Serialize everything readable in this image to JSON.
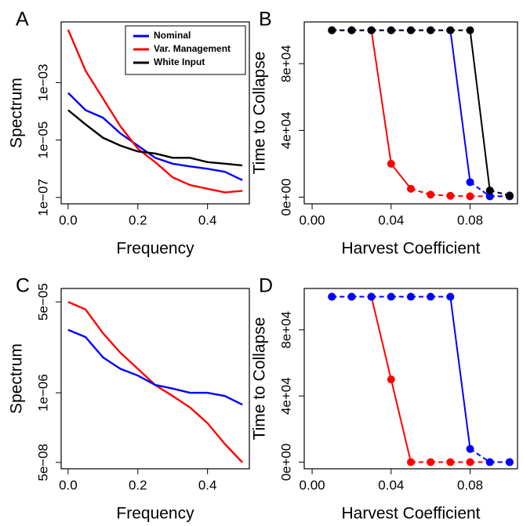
{
  "chart_data": [
    {
      "type": "line",
      "panel_label": "A",
      "xlabel": "Frequency",
      "ylabel": "Spectrum",
      "log_y": true,
      "legend": "top-right",
      "x": [
        0,
        0.05,
        0.1,
        0.15,
        0.2,
        0.25,
        0.3,
        0.35,
        0.4,
        0.45,
        0.5
      ],
      "series": [
        {
          "name": "Nominal",
          "color": "#0000ff",
          "values": [
            0.00044,
            0.00011,
            6e-05,
            1.7e-05,
            6.4e-06,
            2.4e-06,
            1.5e-06,
            1.2e-06,
            1e-06,
            7.8e-07,
            4e-07
          ]
        },
        {
          "name": "Var. Management",
          "color": "#ff0000",
          "values": [
            0.07,
            0.0026,
            0.00028,
            3e-05,
            5e-06,
            1.7e-06,
            5e-07,
            2.7e-07,
            2e-07,
            1.5e-07,
            1.7e-07
          ]
        },
        {
          "name": "White Input",
          "color": "#000000",
          "values": [
            0.00011,
            3.5e-05,
            1.2e-05,
            6.4e-06,
            4e-06,
            3.4e-06,
            2.4e-06,
            2.4e-06,
            1.7e-06,
            1.5e-06,
            1.3e-06
          ]
        }
      ],
      "xlim": [
        -0.02,
        0.52
      ],
      "xticks": [
        {
          "value": 0,
          "label": "0.0"
        },
        0.2,
        0.4
      ],
      "ylim": [
        6e-08,
        0.13
      ],
      "yticks": [
        {
          "value": 1e-07,
          "label": "1e−07"
        },
        {
          "value": 1e-05,
          "label": "1e−05"
        },
        {
          "value": 0.001,
          "label": "1e−03"
        }
      ]
    },
    {
      "type": "line",
      "panel_label": "B",
      "xlabel": "Harvest Coefficient",
      "ylabel": "Time to Collapse",
      "markers": true,
      "x": [
        0.01,
        0.02,
        0.03,
        0.04,
        0.05,
        0.06,
        0.07,
        0.08,
        0.09,
        0.1
      ],
      "series": [
        {
          "color": "#ff0000",
          "values": [
            100000,
            100000,
            100000,
            20000,
            5000,
            1500,
            800,
            500,
            500,
            500
          ]
        },
        {
          "color": "#0000ff",
          "values": [
            100000,
            100000,
            100000,
            100000,
            100000,
            100000,
            100000,
            9000,
            500,
            500
          ]
        },
        {
          "color": "#000000",
          "values": [
            100000,
            100000,
            100000,
            100000,
            100000,
            100000,
            100000,
            100000,
            4000,
            1000
          ]
        }
      ],
      "xlim": [
        -0.004,
        0.104
      ],
      "xticks": [
        {
          "value": 0,
          "label": "0.00"
        },
        0.04,
        0.08
      ],
      "ylim": [
        -4000,
        105000
      ],
      "yticks": [
        {
          "value": 0,
          "label": "0e+00"
        },
        {
          "value": 40000,
          "label": "4e+04"
        },
        {
          "value": 80000,
          "label": "8e+04"
        }
      ]
    },
    {
      "type": "line",
      "panel_label": "C",
      "xlabel": "Frequency",
      "ylabel": "Spectrum",
      "log_y": true,
      "x": [
        0,
        0.05,
        0.1,
        0.15,
        0.2,
        0.25,
        0.3,
        0.35,
        0.4,
        0.45,
        0.5
      ],
      "series": [
        {
          "color": "#ff0000",
          "values": [
            5e-05,
            3.6e-05,
            1.3e-05,
            5.6e-06,
            2.8e-06,
            1.4e-06,
            8.7e-07,
            5.3e-07,
            2.7e-07,
            1.1e-07,
            5e-08
          ]
        },
        {
          "color": "#0000ff",
          "values": [
            1.5e-05,
            1.1e-05,
            4.6e-06,
            2.8e-06,
            2.1e-06,
            1.4e-06,
            1.2e-06,
            1e-06,
            1e-06,
            8.7e-07,
            6e-07
          ]
        }
      ],
      "xlim": [
        -0.02,
        0.52
      ],
      "xticks": [
        {
          "value": 0,
          "label": "0.0"
        },
        0.2,
        0.4
      ],
      "ylim": [
        3.8e-08,
        8.9e-05
      ],
      "yticks": [
        {
          "value": 5e-08,
          "label": "5e−08"
        },
        {
          "value": 1e-06,
          "label": "1e−06"
        },
        {
          "value": 5e-05,
          "label": "5e−05"
        }
      ]
    },
    {
      "type": "line",
      "panel_label": "D",
      "xlabel": "Harvest Coefficient",
      "ylabel": "Time to Collapse",
      "markers": true,
      "x": [
        0.01,
        0.02,
        0.03,
        0.04,
        0.05,
        0.06,
        0.07,
        0.08,
        0.09,
        0.1
      ],
      "series": [
        {
          "color": "#ff0000",
          "values": [
            100000,
            100000,
            100000,
            50000,
            0,
            0,
            0,
            0,
            0,
            0
          ]
        },
        {
          "color": "#0000ff",
          "values": [
            100000,
            100000,
            100000,
            100000,
            100000,
            100000,
            100000,
            8000,
            0,
            0
          ]
        }
      ],
      "xlim": [
        -0.004,
        0.104
      ],
      "xticks": [
        {
          "value": 0,
          "label": "0.00"
        },
        0.04,
        0.08
      ],
      "ylim": [
        -4000,
        105000
      ],
      "yticks": [
        {
          "value": 0,
          "label": "0e+00"
        },
        {
          "value": 40000,
          "label": "4e+04"
        },
        {
          "value": 80000,
          "label": "8e+04"
        }
      ]
    }
  ]
}
